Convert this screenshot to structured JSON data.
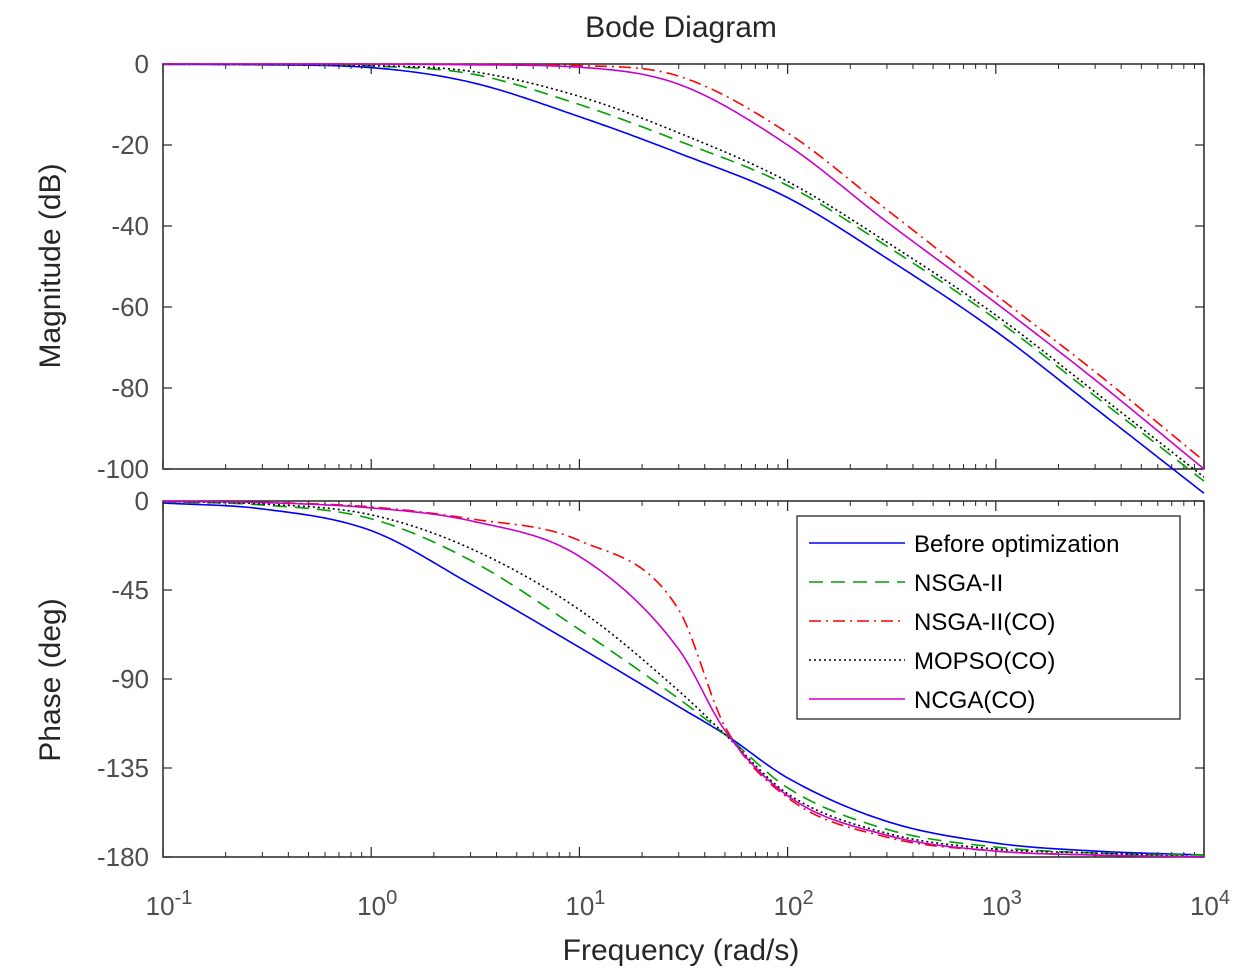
{
  "title": "Bode Diagram",
  "colors": {
    "before": "#0000ff",
    "nsga": "#00a000",
    "nsga_co": "#ff0000",
    "mopso": "#000000",
    "ncga": "#cc00cc"
  },
  "chart_data": [
    {
      "type": "line",
      "panel": "magnitude",
      "title": "Bode Diagram",
      "xlabel": "Frequency  (rad/s)",
      "ylabel": "Magnitude (dB)",
      "x_scale": "log",
      "xlim": [
        0.1,
        10000
      ],
      "ylim": [
        -100,
        0
      ],
      "yticks": [
        0,
        -20,
        -40,
        -60,
        -80,
        -100
      ],
      "grid": false,
      "x": [
        0.1,
        0.3,
        1,
        3,
        10,
        30,
        100,
        300,
        1000,
        3000,
        10000
      ],
      "series": [
        {
          "name": "Before optimization",
          "values": [
            -0.1,
            -0.2,
            -0.9,
            -4.5,
            -13,
            -22,
            -33,
            -48,
            -66,
            -85,
            -106
          ]
        },
        {
          "name": "NSGA-II",
          "values": [
            -0.05,
            -0.1,
            -0.5,
            -2.4,
            -10,
            -19,
            -30,
            -45,
            -63,
            -82,
            -103
          ]
        },
        {
          "name": "NSGA-II(CO)",
          "values": [
            0,
            0,
            0,
            -0.1,
            -0.4,
            -3,
            -17,
            -36,
            -57,
            -76,
            -98
          ]
        },
        {
          "name": "MOPSO(CO)",
          "values": [
            -0.05,
            -0.1,
            -0.4,
            -1.8,
            -8,
            -17,
            -29,
            -44,
            -62,
            -81,
            -102
          ]
        },
        {
          "name": "NCGA(CO)",
          "values": [
            0,
            0,
            -0.05,
            -0.2,
            -0.8,
            -5,
            -20,
            -39,
            -59,
            -78,
            -100
          ]
        }
      ]
    },
    {
      "type": "line",
      "panel": "phase",
      "xlabel": "Frequency  (rad/s)",
      "ylabel": "Phase (deg)",
      "x_scale": "log",
      "xlim": [
        0.1,
        10000
      ],
      "ylim": [
        -180,
        0
      ],
      "yticks": [
        0,
        -45,
        -90,
        -135,
        -180
      ],
      "xtick_labels": [
        "10-1",
        "100",
        "101",
        "102",
        "103",
        "104"
      ],
      "grid": false,
      "legend_position": "top-right",
      "x": [
        0.1,
        0.3,
        1,
        3,
        10,
        30,
        50,
        100,
        300,
        1000,
        3000,
        10000
      ],
      "series": [
        {
          "name": "Before optimization",
          "values": [
            -1,
            -4,
            -15,
            -42,
            -74,
            -104,
            -118,
            -140,
            -162,
            -173,
            -177,
            -179
          ]
        },
        {
          "name": "NSGA-II",
          "values": [
            -0.5,
            -2,
            -9,
            -30,
            -65,
            -100,
            -118,
            -145,
            -166,
            -175,
            -178,
            -179
          ]
        },
        {
          "name": "NSGA-II(CO)",
          "values": [
            -0.2,
            -0.7,
            -3,
            -9,
            -20,
            -55,
            -114,
            -150,
            -170,
            -177,
            -179,
            -180
          ]
        },
        {
          "name": "MOPSO(CO)",
          "values": [
            -0.3,
            -1.5,
            -7,
            -24,
            -55,
            -96,
            -118,
            -148,
            -168,
            -176,
            -178,
            -180
          ]
        },
        {
          "name": "NCGA(CO)",
          "values": [
            -0.2,
            -0.8,
            -3.5,
            -10,
            -28,
            -75,
            -116,
            -149,
            -169,
            -177,
            -179,
            -180
          ]
        }
      ]
    }
  ]
}
